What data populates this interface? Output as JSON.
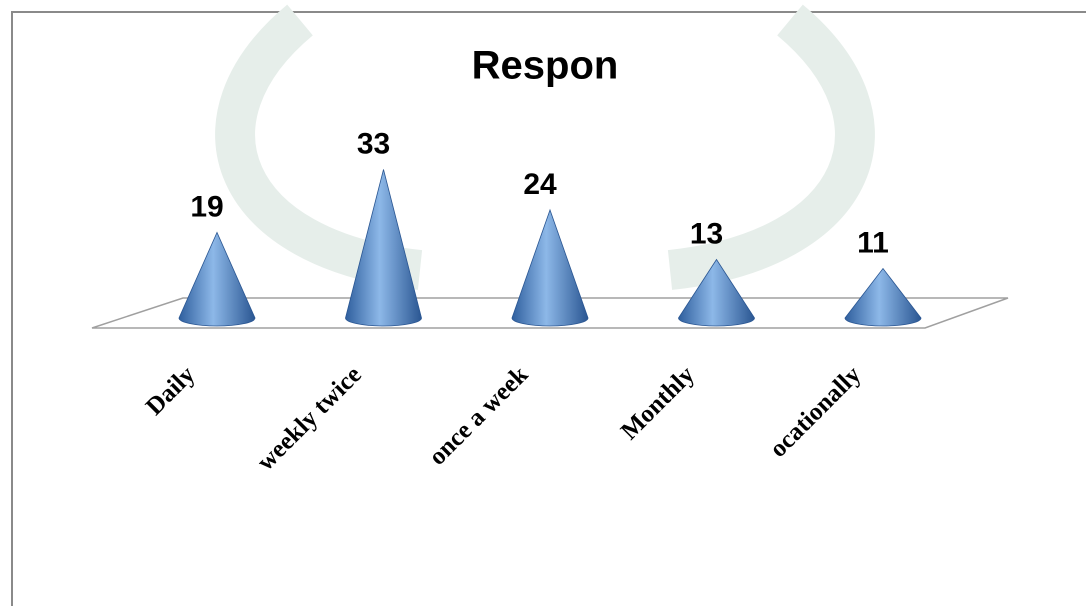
{
  "chart_data": {
    "type": "cone",
    "title": "Respon",
    "categories": [
      "Daily",
      "weekly twice",
      "once a week",
      "Monthly",
      "ocationally"
    ],
    "values": [
      19,
      33,
      24,
      13,
      11
    ],
    "color": "#4f86c6"
  }
}
